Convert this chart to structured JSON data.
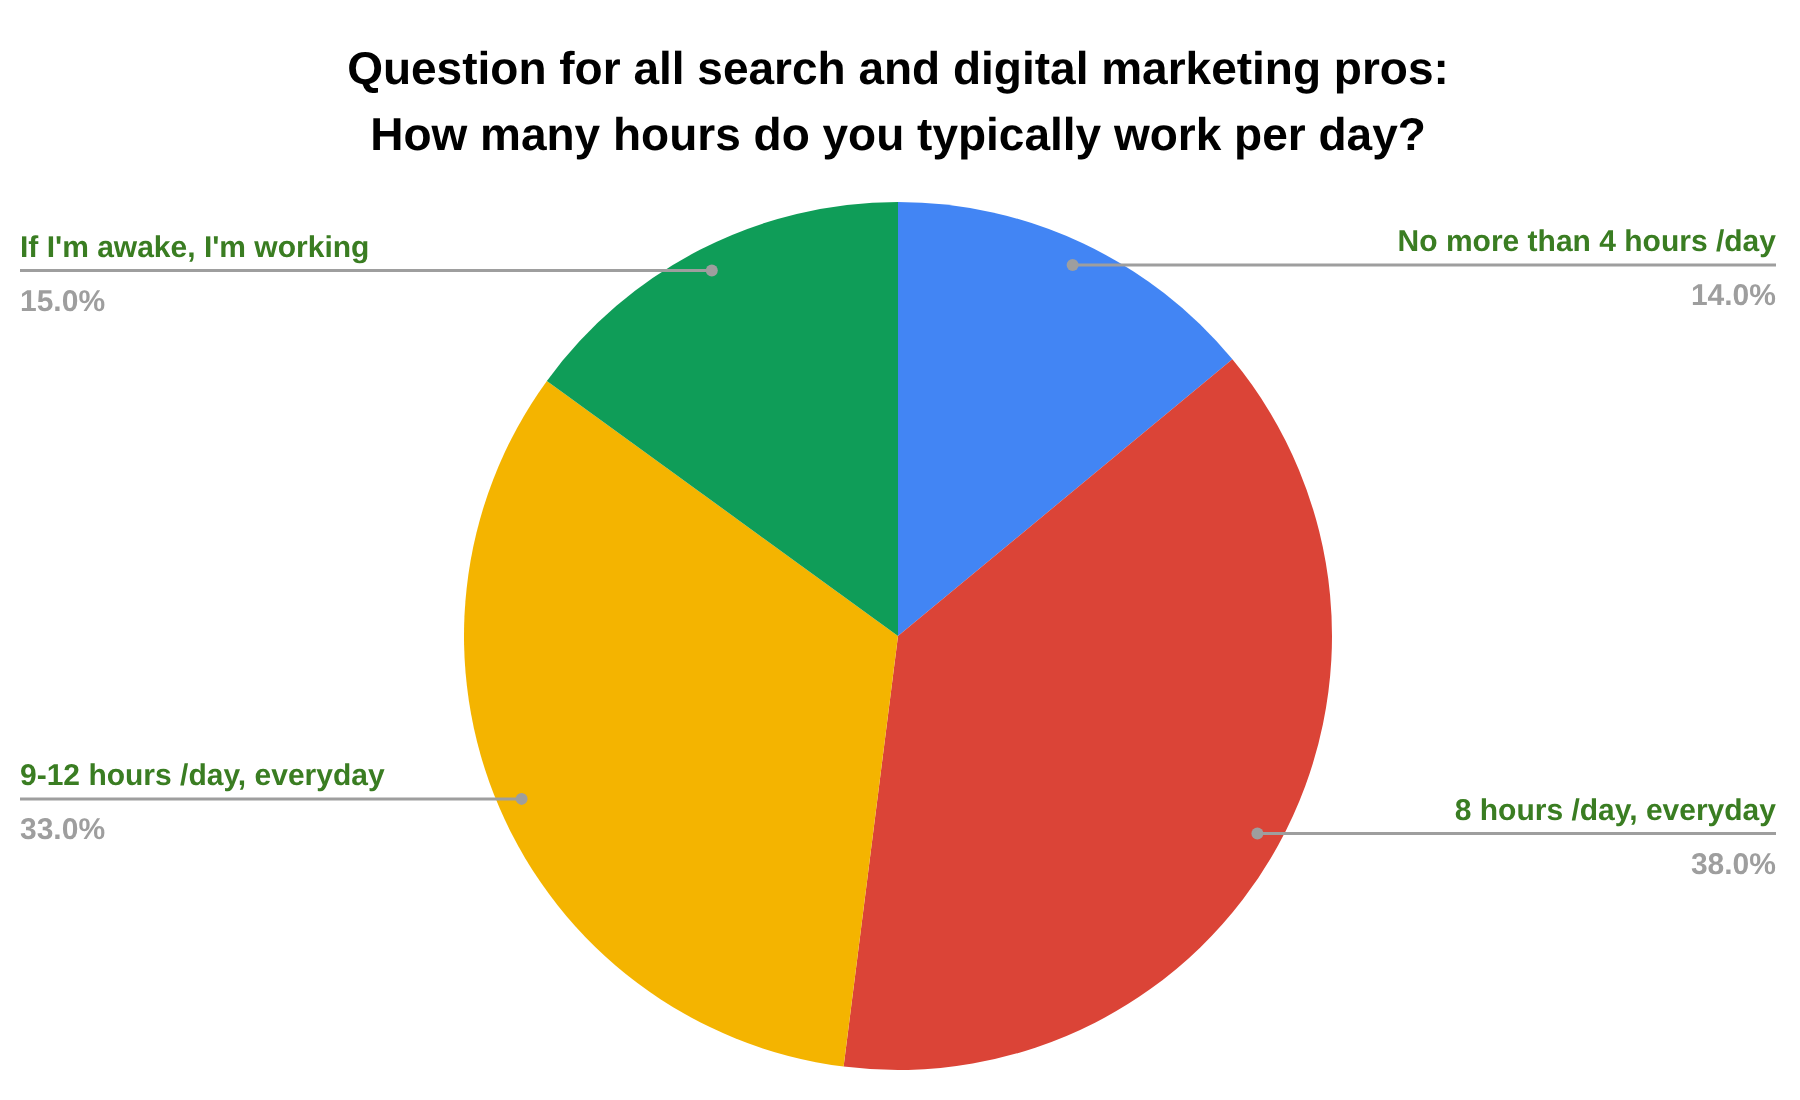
{
  "chart_data": {
    "type": "pie",
    "title": "Question for all search and digital marketing pros:\nHow many hours do you typically work per day?",
    "categories": [
      "No more than 4 hours /day",
      "8 hours /day, everyday",
      "9-12 hours /day, everyday",
      "If I'm awake, I'm working"
    ],
    "values": [
      14,
      38,
      33,
      15
    ],
    "colors": [
      "#4285f4",
      "#db4437",
      "#f4b400",
      "#0f9d58"
    ],
    "value_labels": [
      "14.0%",
      "38.0%",
      "33.0%",
      "15.0%"
    ]
  }
}
